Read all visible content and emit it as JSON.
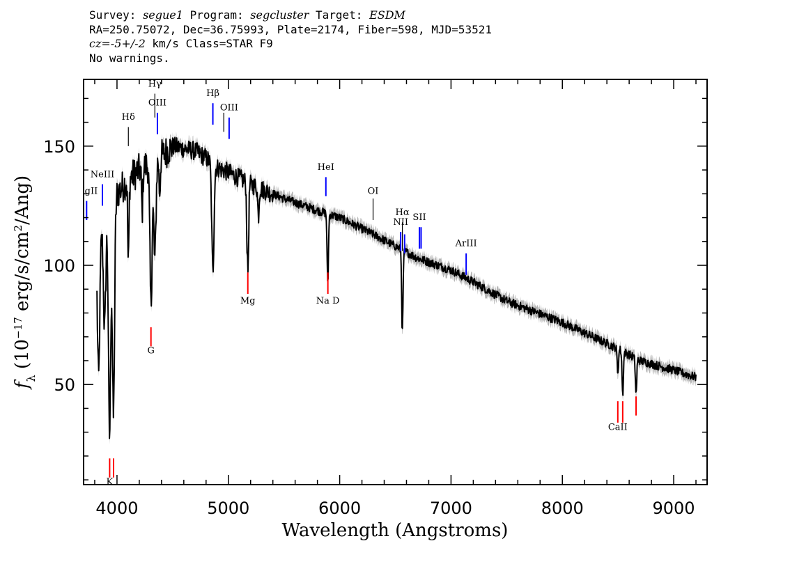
{
  "header": {
    "line1": {
      "survey_label": "Survey:",
      "survey": "segue1",
      "program_label": "Program:",
      "program": "segcluster",
      "target_label": "Target:",
      "target": "ESDM"
    },
    "line2": "RA=250.75072, Dec=36.75993, Plate=2174, Fiber=598, MJD=53521",
    "line3": {
      "cz_label": "cz=",
      "cz_value": "-5+/-2",
      "cz_unit": "km/s",
      "class": "Class=STAR F9"
    },
    "line4": "No warnings."
  },
  "chart_data": {
    "type": "line",
    "xlabel": "Wavelength (Angstroms)",
    "ylabel": "f_λ (10^-17 erg/s/cm^2/Ang)",
    "xlim": [
      3700,
      9300
    ],
    "ylim": [
      8,
      178
    ],
    "xticks": [
      4000,
      5000,
      6000,
      7000,
      8000,
      9000
    ],
    "yticks": [
      50,
      100,
      150
    ],
    "colors": {
      "flux": "#000000",
      "error_band": "#b4b4b4",
      "emission": "#0000ff",
      "absorption": "#ff0000",
      "marker": "#000000"
    },
    "continuum": [
      [
        3820,
        105
      ],
      [
        3900,
        120
      ],
      [
        4000,
        130
      ],
      [
        4100,
        136
      ],
      [
        4200,
        140
      ],
      [
        4300,
        143
      ],
      [
        4400,
        146
      ],
      [
        4500,
        150
      ],
      [
        4600,
        149
      ],
      [
        4700,
        148
      ],
      [
        4800,
        145
      ],
      [
        4900,
        141
      ],
      [
        5000,
        139
      ],
      [
        5200,
        134
      ],
      [
        5500,
        128
      ],
      [
        5800,
        123
      ],
      [
        6000,
        120
      ],
      [
        6300,
        113
      ],
      [
        6500,
        108
      ],
      [
        6700,
        103
      ],
      [
        7000,
        98
      ],
      [
        7200,
        93
      ],
      [
        7500,
        85
      ],
      [
        8000,
        76
      ],
      [
        8500,
        65
      ],
      [
        8700,
        60
      ],
      [
        9000,
        56
      ],
      [
        9200,
        53
      ]
    ],
    "absorption_features": [
      {
        "x": 3835,
        "depth": 55
      },
      {
        "x": 3889,
        "depth": 45
      },
      {
        "x": 3933,
        "depth": 95
      },
      {
        "x": 3968,
        "depth": 90
      },
      {
        "x": 4102,
        "depth": 35
      },
      {
        "x": 4226,
        "depth": 18
      },
      {
        "x": 4305,
        "depth": 60
      },
      {
        "x": 4340,
        "depth": 42
      },
      {
        "x": 4383,
        "depth": 15
      },
      {
        "x": 4861,
        "depth": 45
      },
      {
        "x": 5169,
        "depth": 20
      },
      {
        "x": 5178,
        "depth": 28
      },
      {
        "x": 5270,
        "depth": 12
      },
      {
        "x": 5893,
        "depth": 30
      },
      {
        "x": 6563,
        "depth": 35
      },
      {
        "x": 8498,
        "depth": 10
      },
      {
        "x": 8542,
        "depth": 18
      },
      {
        "x": 8662,
        "depth": 15
      }
    ],
    "lines": [
      {
        "label": "MgII",
        "x": 3727,
        "color": "blue",
        "y1": 119,
        "y2": 127,
        "label_y": 130
      },
      {
        "label": "NeIII",
        "x": 3869,
        "color": "blue",
        "y1": 125,
        "y2": 134,
        "label_y": 137
      },
      {
        "label": "Hδ",
        "x": 4102,
        "color": "black",
        "y1": 150,
        "y2": 158,
        "label_y": 161
      },
      {
        "label": "Hγ",
        "x": 4340,
        "color": "black",
        "y1": 162,
        "y2": 172,
        "label_y": 175
      },
      {
        "label": "OIII",
        "x": 4363,
        "color": "blue",
        "y1": 155,
        "y2": 164,
        "label_y": 167
      },
      {
        "label": "Hβ",
        "x": 4861,
        "color": "blue",
        "y1": 159,
        "y2": 168,
        "label_y": 171
      },
      {
        "label": "OIII",
        "x": 4959,
        "color": "black",
        "y1": 156,
        "y2": 164,
        "label_y": -1
      },
      {
        "label": "OIII",
        "x": 5007,
        "color": "blue",
        "y1": 153,
        "y2": 162,
        "label_y": 165
      },
      {
        "label": "HeI",
        "x": 5876,
        "color": "blue",
        "y1": 129,
        "y2": 137,
        "label_y": 140
      },
      {
        "label": "OI",
        "x": 6300,
        "color": "black",
        "y1": 119,
        "y2": 128,
        "label_y": 130
      },
      {
        "label": "NII",
        "x": 6548,
        "color": "blue",
        "y1": 106,
        "y2": 114,
        "label_y": 117
      },
      {
        "label": "Hα",
        "x": 6563,
        "color": "black",
        "y1": 106,
        "y2": 118,
        "label_y": 121
      },
      {
        "label": "NII",
        "x": 6583,
        "color": "blue",
        "y1": 105,
        "y2": 113,
        "label_y": -1
      },
      {
        "label": "SII",
        "x": 6716,
        "color": "blue",
        "y1": 107,
        "y2": 116,
        "label_y": 119
      },
      {
        "label": "SII",
        "x": 6731,
        "color": "blue",
        "y1": 107,
        "y2": 116,
        "label_y": -1
      },
      {
        "label": "ArIII",
        "x": 7136,
        "color": "blue",
        "y1": 96,
        "y2": 105,
        "label_y": 108
      },
      {
        "label": "K",
        "x": 3934,
        "color": "red",
        "y1": 11,
        "y2": 19,
        "label_y": 8
      },
      {
        "label": "H",
        "x": 3969,
        "color": "red",
        "y1": 11,
        "y2": 19,
        "label_y": -1
      },
      {
        "label": "G",
        "x": 4305,
        "color": "red",
        "y1": 66,
        "y2": 74,
        "label_y": 63
      },
      {
        "label": "Mg",
        "x": 5175,
        "color": "red",
        "y1": 88,
        "y2": 97,
        "label_y": 84
      },
      {
        "label": "Na D",
        "x": 5894,
        "color": "red",
        "y1": 88,
        "y2": 97,
        "label_y": 84
      },
      {
        "label": "CaII",
        "x": 8498,
        "color": "red",
        "y1": 34,
        "y2": 43,
        "label_y": 31
      },
      {
        "label": "CaII",
        "x": 8542,
        "color": "red",
        "y1": 34,
        "y2": 43,
        "label_y": -1
      },
      {
        "label": "CaII",
        "x": 8662,
        "color": "red",
        "y1": 37,
        "y2": 45,
        "label_y": -1
      }
    ]
  }
}
